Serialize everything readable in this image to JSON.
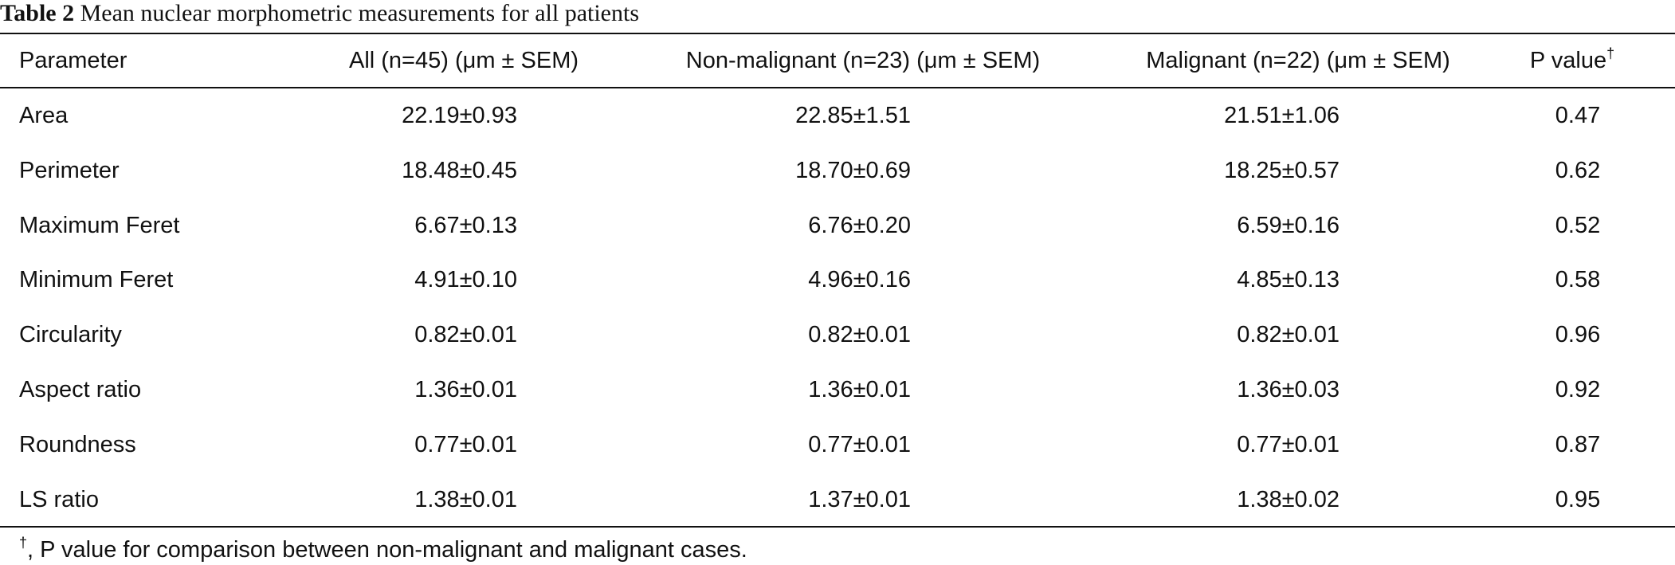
{
  "caption": {
    "label": "Table 2",
    "title": "Mean nuclear morphometric measurements for all patients"
  },
  "table": {
    "header": [
      "Parameter",
      "All (n=45) (μm ± SEM)",
      "Non-malignant (n=23) (μm ± SEM)",
      "Malignant (n=22) (μm ± SEM)",
      {
        "text": "P value",
        "mark": "†"
      }
    ],
    "rows": [
      [
        "Area",
        "22.19±0.93",
        "22.85±1.51",
        "21.51±1.06",
        "0.47"
      ],
      [
        "Perimeter",
        "18.48±0.45",
        "18.70±0.69",
        "18.25±0.57",
        "0.62"
      ],
      [
        "Maximum Feret",
        "6.67±0.13",
        "6.76±0.20",
        "6.59±0.16",
        "0.52"
      ],
      [
        "Minimum Feret",
        "4.91±0.10",
        "4.96±0.16",
        "4.85±0.13",
        "0.58"
      ],
      [
        "Circularity",
        "0.82±0.01",
        "0.82±0.01",
        "0.82±0.01",
        "0.96"
      ],
      [
        "Aspect ratio",
        "1.36±0.01",
        "1.36±0.01",
        "1.36±0.03",
        "0.92"
      ],
      [
        "Roundness",
        "0.77±0.01",
        "0.77±0.01",
        "0.77±0.01",
        "0.87"
      ],
      [
        "LS ratio",
        "1.38±0.01",
        "1.37±0.01",
        "1.38±0.02",
        "0.95"
      ]
    ]
  },
  "footnote": {
    "mark": "†",
    "text": ", P value for comparison between non-malignant and malignant cases."
  }
}
